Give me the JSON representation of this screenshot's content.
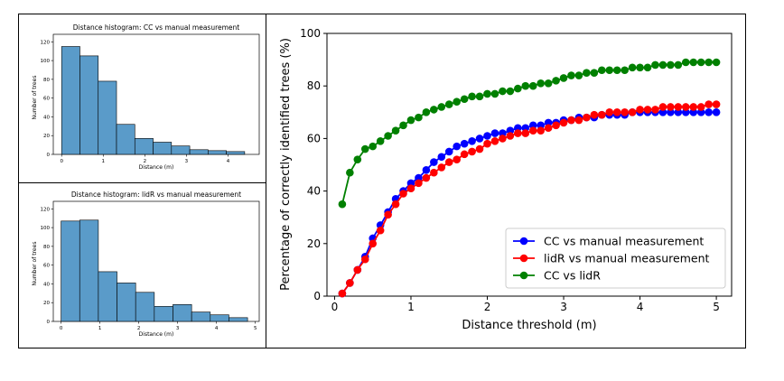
{
  "chart_data": [
    {
      "type": "bar",
      "title": "Distance histogram: CC vs manual measurement",
      "xlabel": "Distance (m)",
      "ylabel": "Number of trees",
      "xlim": [
        -0.2,
        4.75
      ],
      "ylim": [
        0,
        128
      ],
      "xticks": [
        0,
        1,
        2,
        3,
        4
      ],
      "yticks": [
        0,
        20,
        40,
        60,
        80,
        100,
        120
      ],
      "bin_edges": [
        0,
        0.44,
        0.88,
        1.32,
        1.76,
        2.2,
        2.64,
        3.08,
        3.52,
        3.96,
        4.4
      ],
      "values": [
        115,
        105,
        78,
        32,
        17,
        13,
        9,
        5,
        4,
        3
      ],
      "color": "#5a9bc9"
    },
    {
      "type": "bar",
      "title": "Distance histogram: lidR vs manual measurement",
      "xlabel": "Distance (m)",
      "ylabel": "Number of trees",
      "xlim": [
        -0.2,
        5.1
      ],
      "ylim": [
        0,
        128
      ],
      "xticks": [
        0,
        1,
        2,
        3,
        4,
        5
      ],
      "yticks": [
        0,
        20,
        40,
        60,
        80,
        100,
        120
      ],
      "bin_edges": [
        0,
        0.48,
        0.96,
        1.44,
        1.92,
        2.4,
        2.88,
        3.36,
        3.84,
        4.32,
        4.8
      ],
      "values": [
        107,
        108,
        53,
        41,
        31,
        16,
        18,
        10,
        7,
        4
      ],
      "color": "#5a9bc9"
    },
    {
      "type": "line",
      "xlabel": "Distance threshold (m)",
      "ylabel": "Percentage of correctly identified trees (%)",
      "xlim": [
        -0.1,
        5.2
      ],
      "ylim": [
        0,
        100
      ],
      "xticks": [
        0,
        1,
        2,
        3,
        4,
        5
      ],
      "yticks": [
        0,
        20,
        40,
        60,
        80,
        100
      ],
      "legend_position": "lower-right",
      "x": [
        0.1,
        0.2,
        0.3,
        0.4,
        0.5,
        0.6,
        0.7,
        0.8,
        0.9,
        1.0,
        1.1,
        1.2,
        1.3,
        1.4,
        1.5,
        1.6,
        1.7,
        1.8,
        1.9,
        2.0,
        2.1,
        2.2,
        2.3,
        2.4,
        2.5,
        2.6,
        2.7,
        2.8,
        2.9,
        3.0,
        3.1,
        3.2,
        3.3,
        3.4,
        3.5,
        3.6,
        3.7,
        3.8,
        3.9,
        4.0,
        4.1,
        4.2,
        4.3,
        4.4,
        4.5,
        4.6,
        4.7,
        4.8,
        4.9,
        5.0
      ],
      "series": [
        {
          "name": "CC vs manual measurement",
          "color": "#0000ff",
          "values": [
            1,
            5,
            10,
            15,
            22,
            27,
            32,
            37,
            40,
            43,
            45,
            48,
            51,
            53,
            55,
            57,
            58,
            59,
            60,
            61,
            62,
            62,
            63,
            64,
            64,
            65,
            65,
            66,
            66,
            67,
            67,
            68,
            68,
            68,
            69,
            69,
            69,
            69,
            70,
            70,
            70,
            70,
            70,
            70,
            70,
            70,
            70,
            70,
            70,
            70
          ]
        },
        {
          "name": "lidR vs manual measurement",
          "color": "#ff0000",
          "values": [
            1,
            5,
            10,
            14,
            20,
            25,
            31,
            35,
            39,
            41,
            43,
            45,
            47,
            49,
            51,
            52,
            54,
            55,
            56,
            58,
            59,
            60,
            61,
            62,
            62,
            63,
            63,
            64,
            65,
            66,
            67,
            67,
            68,
            69,
            69,
            70,
            70,
            70,
            70,
            71,
            71,
            71,
            72,
            72,
            72,
            72,
            72,
            72,
            73,
            73
          ]
        },
        {
          "name": "CC vs lidR",
          "color": "#008000",
          "values": [
            35,
            47,
            52,
            56,
            57,
            59,
            61,
            63,
            65,
            67,
            68,
            70,
            71,
            72,
            73,
            74,
            75,
            76,
            76,
            77,
            77,
            78,
            78,
            79,
            80,
            80,
            81,
            81,
            82,
            83,
            84,
            84,
            85,
            85,
            86,
            86,
            86,
            86,
            87,
            87,
            87,
            88,
            88,
            88,
            88,
            89,
            89,
            89,
            89,
            89
          ]
        }
      ]
    }
  ]
}
